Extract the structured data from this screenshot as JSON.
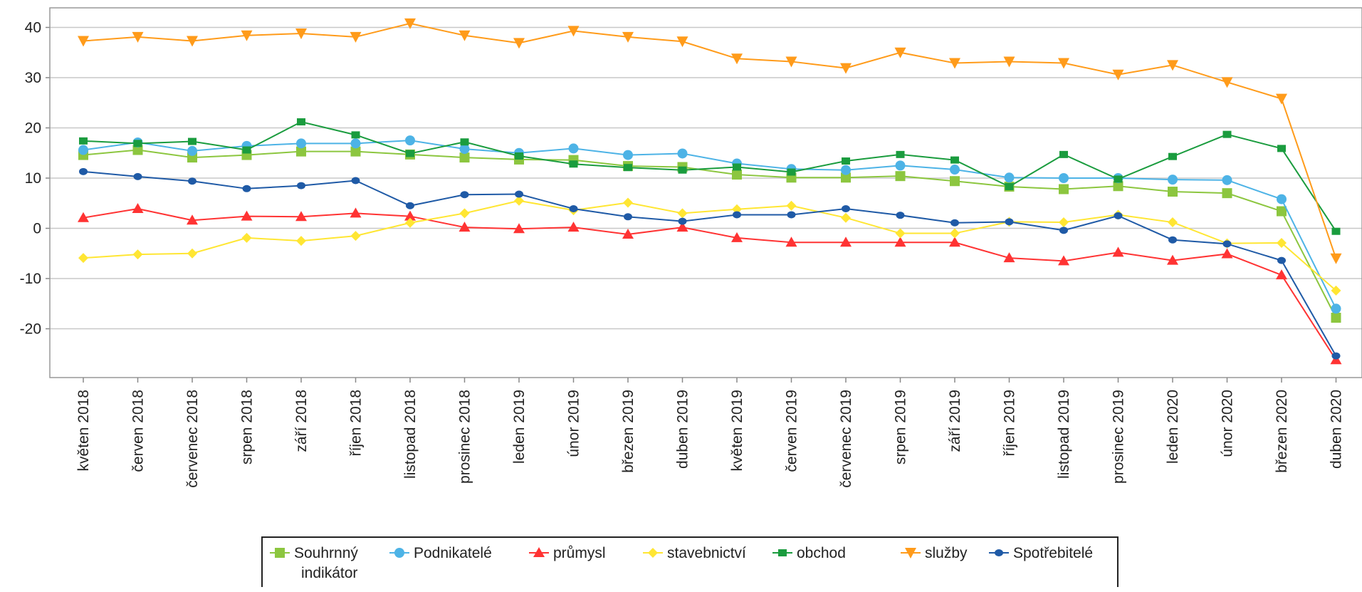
{
  "chart_data": {
    "type": "line",
    "title": "",
    "xlabel": "",
    "ylabel": "",
    "ylim": [
      -30,
      43
    ],
    "yticks": [
      40,
      30,
      20,
      10,
      0,
      -10,
      -20
    ],
    "grid": "horizontal",
    "legend_position": "bottom",
    "categories": [
      "květen 2018",
      "červen 2018",
      "červenec 2018",
      "srpen 2018",
      "září 2018",
      "říjen 2018",
      "listopad 2018",
      "prosinec 2018",
      "leden 2019",
      "únor 2019",
      "březen 2019",
      "duben 2019",
      "květen 2019",
      "červen 2019",
      "červenec 2019",
      "srpen 2019",
      "září 2019",
      "říjen 2019",
      "listopad 2019",
      "prosinec 2019",
      "leden 2020",
      "únor 2020",
      "březen 2020",
      "duben 2020"
    ],
    "series": [
      {
        "name": "Souhrnný indikátor",
        "name_lines": [
          "Souhrnný",
          "indikátor"
        ],
        "color": "#8cc63f",
        "marker": "square",
        "values": [
          14.6,
          15.6,
          14.1,
          14.6,
          15.3,
          15.3,
          14.7,
          14.1,
          13.7,
          13.6,
          12.4,
          12.2,
          10.7,
          10.1,
          10.1,
          10.4,
          9.4,
          8.3,
          7.8,
          8.4,
          7.3,
          7.0,
          3.4,
          -17.8
        ]
      },
      {
        "name": "Podnikatelé",
        "color": "#4db3e6",
        "marker": "circle",
        "values": [
          15.6,
          17.1,
          15.4,
          16.4,
          16.9,
          16.9,
          17.5,
          15.8,
          15.0,
          15.9,
          14.6,
          14.9,
          12.9,
          11.8,
          11.6,
          12.5,
          11.7,
          10.1,
          10.0,
          10.0,
          9.7,
          9.6,
          5.8,
          -16.0
        ]
      },
      {
        "name": "průmysl",
        "color": "#ff3333",
        "marker": "triangle-up",
        "values": [
          2.1,
          3.9,
          1.6,
          2.4,
          2.3,
          3.0,
          2.4,
          0.2,
          -0.1,
          0.2,
          -1.2,
          0.2,
          -1.9,
          -2.8,
          -2.8,
          -2.8,
          -2.8,
          -5.9,
          -6.5,
          -4.8,
          -6.4,
          -5.1,
          -9.3,
          -26.2
        ]
      },
      {
        "name": "stavebnictví",
        "color": "#ffe633",
        "marker": "diamond",
        "values": [
          -5.9,
          -5.2,
          -5.0,
          -1.9,
          -2.5,
          -1.5,
          1.1,
          3.0,
          5.5,
          3.6,
          5.1,
          3.0,
          3.8,
          4.5,
          2.1,
          -1.0,
          -1.0,
          1.3,
          1.2,
          2.7,
          1.2,
          -3.0,
          -2.9,
          -12.4
        ]
      },
      {
        "name": "obchod",
        "color": "#1a9c3e",
        "marker": "small-square",
        "values": [
          17.4,
          16.9,
          17.3,
          15.6,
          21.2,
          18.6,
          14.9,
          17.2,
          14.4,
          12.8,
          12.1,
          11.6,
          12.2,
          11.2,
          13.4,
          14.7,
          13.6,
          8.3,
          14.7,
          9.8,
          14.3,
          18.7,
          15.9,
          -0.6
        ]
      },
      {
        "name": "služby",
        "color": "#ff9b1a",
        "marker": "triangle-down",
        "values": [
          37.3,
          38.1,
          37.3,
          38.4,
          38.8,
          38.1,
          40.8,
          38.4,
          36.9,
          39.3,
          38.1,
          37.2,
          33.8,
          33.2,
          31.9,
          35.0,
          32.9,
          33.2,
          32.9,
          30.6,
          32.5,
          29.1,
          25.8,
          -6.0
        ]
      },
      {
        "name": "Spotřebitelé",
        "color": "#1f5aa6",
        "marker": "small-circle",
        "values": [
          11.3,
          10.3,
          9.4,
          7.9,
          8.5,
          9.5,
          4.5,
          6.7,
          6.8,
          3.9,
          2.3,
          1.4,
          2.7,
          2.7,
          3.9,
          2.6,
          1.1,
          1.3,
          -0.4,
          2.5,
          -2.3,
          -3.1,
          -6.4,
          -25.4
        ]
      }
    ]
  }
}
